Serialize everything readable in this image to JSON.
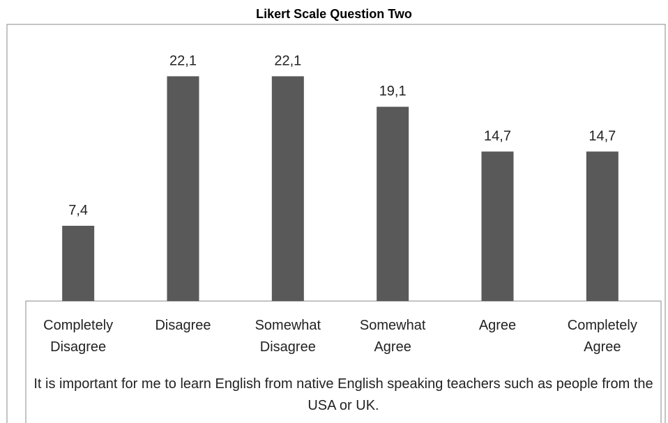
{
  "chart_data": {
    "type": "bar",
    "title": "Likert Scale Question Two",
    "categories": [
      "Completely Disagree",
      "Disagree",
      "Somewhat Disagree",
      "Somewhat Agree",
      "Agree",
      "Completely Agree"
    ],
    "values": [
      7.4,
      22.1,
      22.1,
      19.1,
      14.7,
      14.7
    ],
    "value_labels": [
      "7,4",
      "22,1",
      "22,1",
      "19,1",
      "14,7",
      "14,7"
    ],
    "color": "#595959",
    "ylim": [
      0,
      27.2
    ],
    "x_label": "It is important for me to learn English from native English speaking teachers such as people from the USA or UK."
  }
}
